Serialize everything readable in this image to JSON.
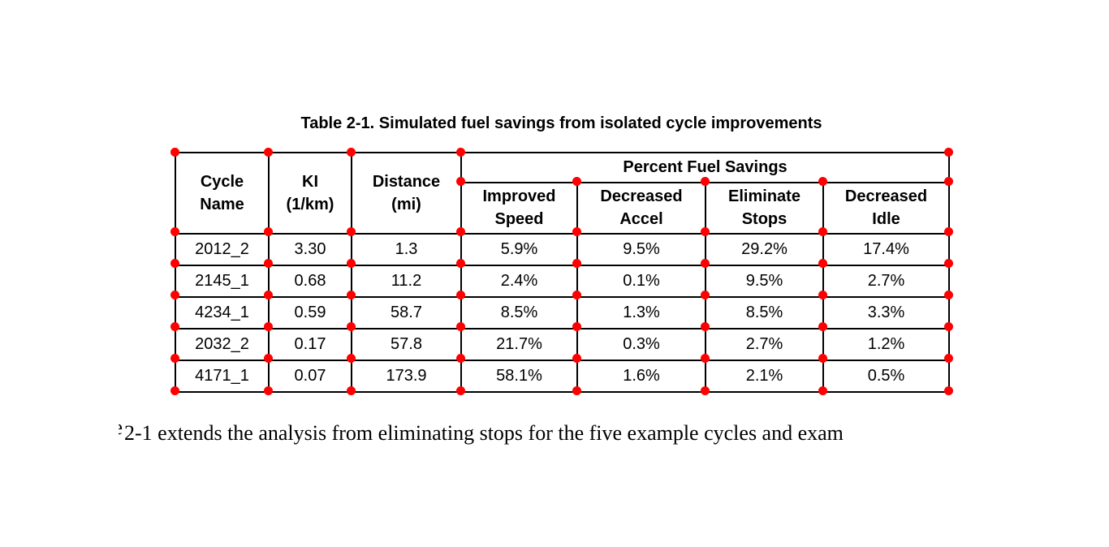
{
  "figure": {
    "title": "Table 2-1. Simulated fuel savings from isolated cycle improvements",
    "marker_color": "#ff0000",
    "border_color": "#000000",
    "header": {
      "cycle_name": "Cycle\nName",
      "ki": "KI\n(1/km)",
      "distance": "Distance\n(mi)",
      "group": "Percent Fuel Savings",
      "improved_speed": "Improved\nSpeed",
      "decreased_accel": "Decreased\nAccel",
      "eliminate_stops": "Eliminate\nStops",
      "decreased_idle": "Decreased\nIdle"
    },
    "rows": [
      [
        "2012_2",
        "3.30",
        "1.3",
        "5.9%",
        "9.5%",
        "29.2%",
        "17.4%"
      ],
      [
        "2145_1",
        "0.68",
        "11.2",
        "2.4%",
        "0.1%",
        "9.5%",
        "2.7%"
      ],
      [
        "4234_1",
        "0.59",
        "58.7",
        "8.5%",
        "1.3%",
        "8.5%",
        "3.3%"
      ],
      [
        "2032_2",
        "0.17",
        "57.8",
        "21.7%",
        "0.3%",
        "2.7%",
        "1.2%"
      ],
      [
        "4171_1",
        "0.07",
        "173.9",
        "58.1%",
        "1.6%",
        "2.1%",
        "0.5%"
      ]
    ]
  },
  "chart_data": {
    "type": "table",
    "title": "Table 2-1. Simulated fuel savings from isolated cycle improvements",
    "column_groups": [
      "Cycle Name",
      "KI (1/km)",
      "Distance (mi)",
      "Percent Fuel Savings"
    ],
    "columns": [
      "Cycle Name",
      "KI (1/km)",
      "Distance (mi)",
      "Improved Speed",
      "Decreased Accel",
      "Eliminate Stops",
      "Decreased Idle"
    ],
    "rows": [
      [
        "2012_2",
        3.3,
        1.3,
        "5.9%",
        "9.5%",
        "29.2%",
        "17.4%"
      ],
      [
        "2145_1",
        0.68,
        11.2,
        "2.4%",
        "0.1%",
        "9.5%",
        "2.7%"
      ],
      [
        "4234_1",
        0.59,
        58.7,
        "8.5%",
        "1.3%",
        "8.5%",
        "3.3%"
      ],
      [
        "2032_2",
        0.17,
        57.8,
        "21.7%",
        "0.3%",
        "2.7%",
        "1.2%"
      ],
      [
        "4171_1",
        0.07,
        173.9,
        "58.1%",
        "1.6%",
        "2.1%",
        "0.5%"
      ]
    ]
  },
  "body_text": {
    "cropped_fragment": "e",
    "line": "2-1 extends the analysis from eliminating stops for the five example cycles and exam"
  }
}
